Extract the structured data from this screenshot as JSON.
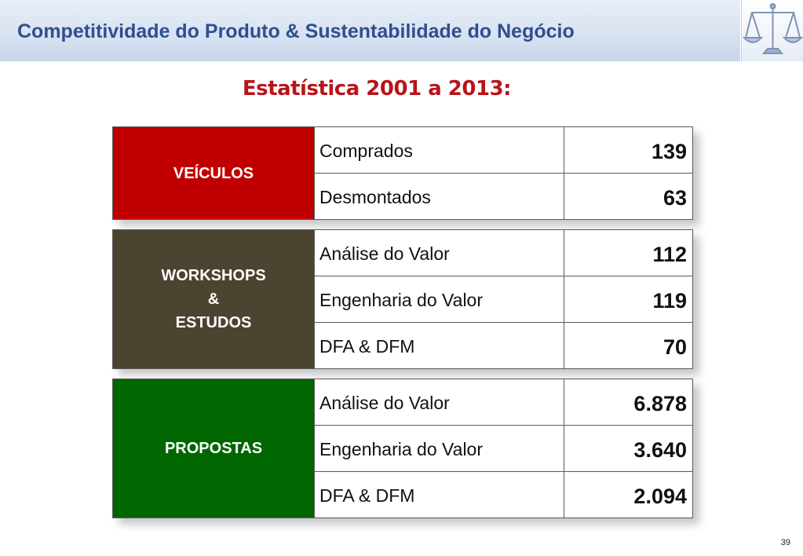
{
  "header": {
    "title": "Competitividade do Produto & Sustentabilidade do Negócio"
  },
  "subtitle": "Estatística 2001 a 2013:",
  "groups": [
    {
      "label_lines": [
        "VEÍCULOS"
      ],
      "color": "#c00000",
      "rows": [
        {
          "item": "Comprados",
          "value": "139"
        },
        {
          "item": "Desmontados",
          "value": "63"
        }
      ]
    },
    {
      "label_lines": [
        "WORKSHOPS",
        "&",
        "ESTUDOS"
      ],
      "color": "#4a4430",
      "rows": [
        {
          "item": "Análise do Valor",
          "value": "112"
        },
        {
          "item": "Engenharia do Valor",
          "value": "119"
        },
        {
          "item": "DFA & DFM",
          "value": "70"
        }
      ]
    },
    {
      "label_lines": [
        "PROPOSTAS"
      ],
      "color": "#006600",
      "rows": [
        {
          "item": "Análise do Valor",
          "value": "6.878"
        },
        {
          "item": "Engenharia do Valor",
          "value": "3.640"
        },
        {
          "item": "DFA & DFM",
          "value": "2.094"
        }
      ]
    }
  ],
  "page_number": "39",
  "logo_icon": "scales-of-justice-icon"
}
